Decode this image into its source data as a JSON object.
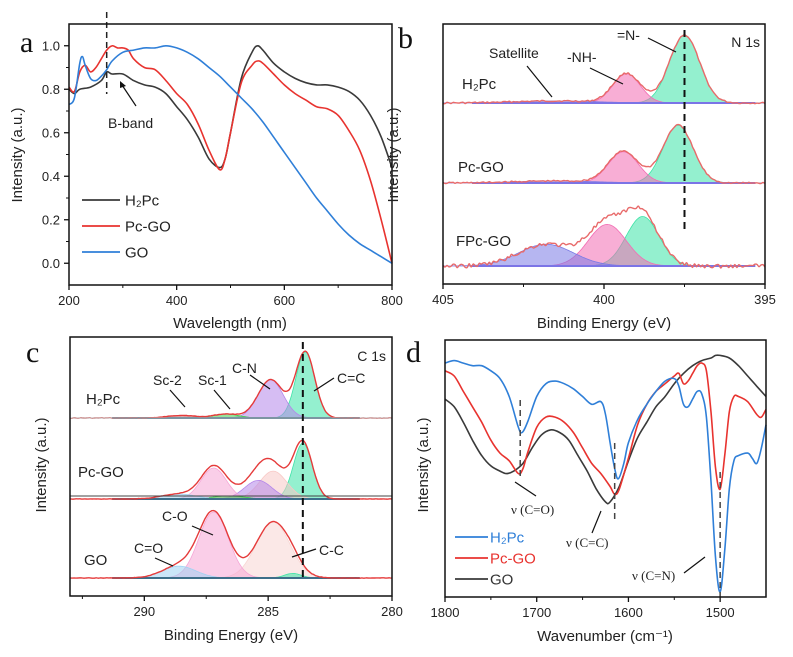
{
  "chart_data": [
    {
      "id": "a",
      "type": "line",
      "panel_label": "a",
      "xlabel": "Wavelength (nm)",
      "ylabel": "Intensity (a.u.)",
      "xlim": [
        200,
        800
      ],
      "ylim": [
        -0.1,
        1.1
      ],
      "xticks": [
        "200",
        "400",
        "600",
        "800"
      ],
      "yticks": [
        "0.0",
        "0.2",
        "0.4",
        "0.6",
        "0.8",
        "1.0"
      ],
      "legend_position": "bottom-left",
      "annotations": [
        {
          "text": "B-band",
          "x": 270
        }
      ],
      "series": [
        {
          "name": "H₂Pc",
          "color": "#3a3a3a",
          "x": [
            200,
            210,
            220,
            240,
            260,
            270,
            280,
            300,
            320,
            340,
            360,
            380,
            400,
            420,
            440,
            460,
            480,
            490,
            500,
            520,
            540,
            550,
            560,
            580,
            600,
            620,
            640,
            660,
            680,
            700,
            720,
            740,
            760,
            780,
            800
          ],
          "y": [
            0.8,
            0.78,
            0.8,
            0.81,
            0.84,
            0.88,
            0.87,
            0.87,
            0.84,
            0.82,
            0.81,
            0.78,
            0.72,
            0.66,
            0.58,
            0.48,
            0.44,
            0.48,
            0.6,
            0.85,
            0.97,
            1.0,
            0.98,
            0.92,
            0.88,
            0.85,
            0.83,
            0.82,
            0.82,
            0.81,
            0.79,
            0.75,
            0.68,
            0.58,
            0.44
          ]
        },
        {
          "name": "Pc-GO",
          "color": "#e8332f",
          "x": [
            200,
            210,
            220,
            230,
            240,
            250,
            260,
            270,
            280,
            290,
            300,
            310,
            320,
            340,
            360,
            380,
            400,
            420,
            440,
            460,
            480,
            490,
            500,
            520,
            540,
            550,
            560,
            580,
            600,
            620,
            640,
            660,
            680,
            700,
            720,
            740,
            760,
            780,
            800
          ],
          "y": [
            0.81,
            0.79,
            0.88,
            0.91,
            0.88,
            0.9,
            0.94,
            0.98,
            1.0,
            0.99,
            0.99,
            0.98,
            0.94,
            0.9,
            0.89,
            0.84,
            0.78,
            0.73,
            0.64,
            0.52,
            0.43,
            0.48,
            0.6,
            0.83,
            0.91,
            0.93,
            0.92,
            0.87,
            0.82,
            0.78,
            0.75,
            0.72,
            0.71,
            0.68,
            0.61,
            0.52,
            0.38,
            0.2,
            0.0
          ]
        },
        {
          "name": "GO",
          "color": "#2f7fd8",
          "x": [
            200,
            210,
            220,
            225,
            230,
            240,
            250,
            260,
            270,
            280,
            300,
            320,
            340,
            360,
            380,
            400,
            420,
            440,
            460,
            480,
            500,
            520,
            540,
            560,
            580,
            600,
            620,
            640,
            660,
            680,
            700,
            720,
            740,
            760,
            780,
            800
          ],
          "y": [
            0.73,
            0.76,
            0.92,
            0.95,
            0.91,
            0.85,
            0.84,
            0.86,
            0.89,
            0.93,
            0.97,
            0.98,
            0.99,
            0.99,
            1.0,
            0.99,
            0.97,
            0.94,
            0.9,
            0.86,
            0.81,
            0.76,
            0.71,
            0.65,
            0.58,
            0.51,
            0.44,
            0.37,
            0.3,
            0.24,
            0.18,
            0.13,
            0.09,
            0.06,
            0.03,
            0.0
          ]
        }
      ],
      "marker_line_x": 270
    },
    {
      "id": "b",
      "type": "line",
      "panel_label": "b",
      "title": "N 1s",
      "xlabel": "Binding Energy (eV)",
      "ylabel": "Intensity (a.u.)",
      "xlim": [
        405,
        395
      ],
      "xticks": [
        "405",
        "400",
        "395"
      ],
      "marker_line_x": 397.5,
      "annotations": [
        "Satellite",
        "-NH-",
        "=N-"
      ],
      "stacks": [
        {
          "name": "H₂Pc",
          "peaks": [
            {
              "label": "=N-",
              "center": 397.5,
              "height": 1.0,
              "fwhm": 1.1,
              "color": "#3de3a7"
            },
            {
              "label": "-NH-",
              "center": 399.3,
              "height": 0.43,
              "fwhm": 1.0,
              "color": "#f26cb3"
            },
            {
              "label": "Satellite",
              "center": 401.5,
              "height": 0.03,
              "fwhm": 3.0,
              "color": "#7a7ae6"
            }
          ]
        },
        {
          "name": "Pc-GO",
          "peaks": [
            {
              "label": "=N-",
              "center": 397.7,
              "height": 0.85,
              "fwhm": 1.1,
              "color": "#3de3a7"
            },
            {
              "label": "-NH-",
              "center": 399.4,
              "height": 0.46,
              "fwhm": 1.1,
              "color": "#f26cb3"
            },
            {
              "label": "Satellite",
              "center": 401.5,
              "height": 0.03,
              "fwhm": 3.0,
              "color": "#7a7ae6"
            }
          ]
        },
        {
          "name": "FPc-GO",
          "peaks": [
            {
              "label": "=N-",
              "center": 398.8,
              "height": 0.75,
              "fwhm": 1.2,
              "color": "#3de3a7"
            },
            {
              "label": "-NH-",
              "center": 399.9,
              "height": 0.63,
              "fwhm": 1.4,
              "color": "#f26cb3"
            },
            {
              "label": "Satellite",
              "center": 401.8,
              "height": 0.33,
              "fwhm": 2.0,
              "color": "#7a7ae6"
            }
          ]
        }
      ]
    },
    {
      "id": "c",
      "type": "line",
      "panel_label": "c",
      "title": "C 1s",
      "xlabel": "Binding Energy (eV)",
      "ylabel": "Intensity (a.u.)",
      "xlim": [
        293,
        280
      ],
      "xticks": [
        "290",
        "285",
        "280"
      ],
      "marker_line_x": 283.6,
      "annotations": [
        "Sc-2",
        "Sc-1",
        "C-N",
        "C=C",
        "C-O",
        "C=O",
        "C-C"
      ],
      "stacks": [
        {
          "name": "H₂Pc",
          "peaks": [
            {
              "label": "C=C",
              "center": 283.5,
              "height": 1.0,
              "fwhm": 0.9,
              "color": "#3de3a7"
            },
            {
              "label": "C-N",
              "center": 284.9,
              "height": 0.58,
              "fwhm": 1.2,
              "color": "#b587ea"
            },
            {
              "label": "Sc-1",
              "center": 286.7,
              "height": 0.06,
              "fwhm": 1.2,
              "color": "#3ccf4a"
            },
            {
              "label": "Sc-2",
              "center": 288.5,
              "height": 0.04,
              "fwhm": 1.3,
              "color": "#c47a7a"
            }
          ]
        },
        {
          "name": "Pc-GO",
          "peaks": [
            {
              "label": "C=C",
              "center": 283.6,
              "height": 0.9,
              "fwhm": 0.9,
              "color": "#3de3a7"
            },
            {
              "label": "C-C",
              "center": 284.8,
              "height": 0.45,
              "fwhm": 1.3,
              "color": "#f8c9c6"
            },
            {
              "label": "C-N",
              "center": 285.4,
              "height": 0.3,
              "fwhm": 1.3,
              "color": "#b587ea"
            },
            {
              "label": "C-O",
              "center": 287.2,
              "height": 0.5,
              "fwhm": 1.2,
              "color": "#f5a6d6"
            },
            {
              "label": "Sc-1",
              "center": 286.6,
              "height": 0.05,
              "fwhm": 1.5,
              "color": "#3ccf4a"
            },
            {
              "label": "C=O",
              "center": 288.6,
              "height": 0.08,
              "fwhm": 1.6,
              "color": "#9fd2f3"
            }
          ]
        },
        {
          "name": "GO",
          "peaks": [
            {
              "label": "C-C",
              "center": 284.8,
              "height": 0.85,
              "fwhm": 1.6,
              "color": "#f8d6d3"
            },
            {
              "label": "C-O",
              "center": 287.2,
              "height": 1.0,
              "fwhm": 1.4,
              "color": "#f5a6d6"
            },
            {
              "label": "C=O",
              "center": 288.6,
              "height": 0.18,
              "fwhm": 1.6,
              "color": "#9fd2f3"
            },
            {
              "label": "C=C",
              "center": 284.0,
              "height": 0.07,
              "fwhm": 0.8,
              "color": "#3de3a7"
            }
          ]
        }
      ]
    },
    {
      "id": "d",
      "type": "line",
      "panel_label": "d",
      "xlabel": "Wavenumber (cm⁻¹)",
      "ylabel": "Intensity (a.u.)",
      "xlim": [
        1800,
        1450
      ],
      "xticks": [
        "1800",
        "1700",
        "1600",
        "1500"
      ],
      "legend_position": "bottom-left",
      "annotations": [
        "ν (C=O)",
        "ν (C=C)",
        "ν (C=N)"
      ],
      "marker_lines_x": [
        1718,
        1615,
        1500
      ],
      "series": [
        {
          "name": "H₂Pc",
          "color": "#2f7fd8",
          "x": [
            1800,
            1790,
            1780,
            1770,
            1760,
            1750,
            1740,
            1730,
            1720,
            1716,
            1710,
            1700,
            1690,
            1680,
            1670,
            1660,
            1650,
            1640,
            1630,
            1625,
            1620,
            1615,
            1611,
            1605,
            1600,
            1590,
            1580,
            1570,
            1560,
            1550,
            1545,
            1540,
            1535,
            1530,
            1525,
            1520,
            1515,
            1510,
            1505,
            1500,
            1495,
            1490,
            1485,
            1480,
            1470,
            1465,
            1460,
            1455,
            1450
          ],
          "y": [
            0.91,
            0.92,
            0.91,
            0.9,
            0.9,
            0.88,
            0.85,
            0.78,
            0.66,
            0.64,
            0.68,
            0.78,
            0.83,
            0.84,
            0.83,
            0.81,
            0.78,
            0.75,
            0.76,
            0.71,
            0.6,
            0.5,
            0.46,
            0.52,
            0.6,
            0.69,
            0.75,
            0.8,
            0.84,
            0.85,
            0.82,
            0.75,
            0.74,
            0.77,
            0.8,
            0.79,
            0.7,
            0.45,
            0.15,
            0.02,
            0.18,
            0.42,
            0.53,
            0.55,
            0.56,
            0.54,
            0.52,
            0.58,
            0.67
          ]
        },
        {
          "name": "Pc-GO",
          "color": "#e8332f",
          "x": [
            1800,
            1790,
            1780,
            1770,
            1760,
            1750,
            1740,
            1730,
            1720,
            1715,
            1710,
            1700,
            1690,
            1680,
            1670,
            1660,
            1650,
            1640,
            1630,
            1620,
            1615,
            1610,
            1600,
            1590,
            1580,
            1570,
            1560,
            1550,
            1545,
            1540,
            1535,
            1530,
            1525,
            1520,
            1515,
            1510,
            1505,
            1500,
            1495,
            1490,
            1485,
            1480,
            1470,
            1460,
            1455,
            1450
          ],
          "y": [
            0.88,
            0.86,
            0.8,
            0.74,
            0.68,
            0.61,
            0.56,
            0.53,
            0.48,
            0.5,
            0.56,
            0.66,
            0.7,
            0.7,
            0.68,
            0.64,
            0.58,
            0.52,
            0.48,
            0.43,
            0.4,
            0.42,
            0.54,
            0.67,
            0.75,
            0.8,
            0.83,
            0.86,
            0.87,
            0.83,
            0.84,
            0.87,
            0.9,
            0.91,
            0.88,
            0.72,
            0.5,
            0.42,
            0.55,
            0.72,
            0.78,
            0.78,
            0.76,
            0.71,
            0.7,
            0.73
          ]
        },
        {
          "name": "GO",
          "color": "#3a3a3a",
          "x": [
            1800,
            1790,
            1780,
            1770,
            1760,
            1750,
            1740,
            1733,
            1725,
            1715,
            1705,
            1695,
            1685,
            1675,
            1665,
            1655,
            1645,
            1635,
            1625,
            1620,
            1610,
            1600,
            1590,
            1580,
            1570,
            1560,
            1550,
            1540,
            1530,
            1520,
            1510,
            1505,
            1500,
            1490,
            1480,
            1470,
            1460,
            1450
          ],
          "y": [
            0.77,
            0.74,
            0.68,
            0.61,
            0.55,
            0.51,
            0.49,
            0.48,
            0.49,
            0.52,
            0.58,
            0.63,
            0.65,
            0.64,
            0.61,
            0.55,
            0.49,
            0.42,
            0.37,
            0.37,
            0.43,
            0.53,
            0.62,
            0.68,
            0.74,
            0.78,
            0.83,
            0.87,
            0.9,
            0.92,
            0.93,
            0.94,
            0.94,
            0.93,
            0.9,
            0.86,
            0.82,
            0.78
          ]
        }
      ]
    }
  ]
}
